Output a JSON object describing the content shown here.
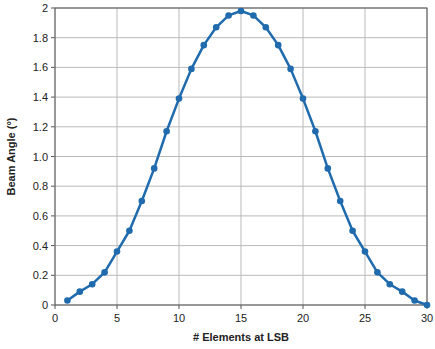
{
  "chart_data": {
    "type": "line",
    "x_label": "# Elements at LSB",
    "y_label": "Beam Angle (°)",
    "x": [
      1,
      2,
      3,
      4,
      5,
      6,
      7,
      8,
      9,
      10,
      11,
      12,
      13,
      14,
      15,
      16,
      17,
      18,
      19,
      20,
      21,
      22,
      23,
      24,
      25,
      26,
      27,
      28,
      29,
      30
    ],
    "series": [
      {
        "name": "Beam Angle",
        "color": "#1f6bad",
        "marker": "circle",
        "line_style": "solid",
        "values": [
          0.03,
          0.09,
          0.14,
          0.22,
          0.36,
          0.5,
          0.7,
          0.92,
          1.17,
          1.39,
          1.59,
          1.75,
          1.87,
          1.95,
          1.98,
          1.95,
          1.87,
          1.75,
          1.59,
          1.39,
          1.17,
          0.92,
          0.7,
          0.5,
          0.36,
          0.22,
          0.14,
          0.09,
          0.03,
          0.0
        ]
      }
    ],
    "xlim": [
      0,
      30
    ],
    "xticks": [
      0,
      5,
      10,
      15,
      20,
      25,
      30
    ],
    "ylim": [
      0,
      2
    ],
    "yticks": [
      0,
      0.2,
      0.4,
      0.6,
      0.8,
      {
        "value": 1.0,
        "label": "1.0"
      },
      1.2,
      1.4,
      1.6,
      1.8,
      2
    ],
    "grid": true
  }
}
